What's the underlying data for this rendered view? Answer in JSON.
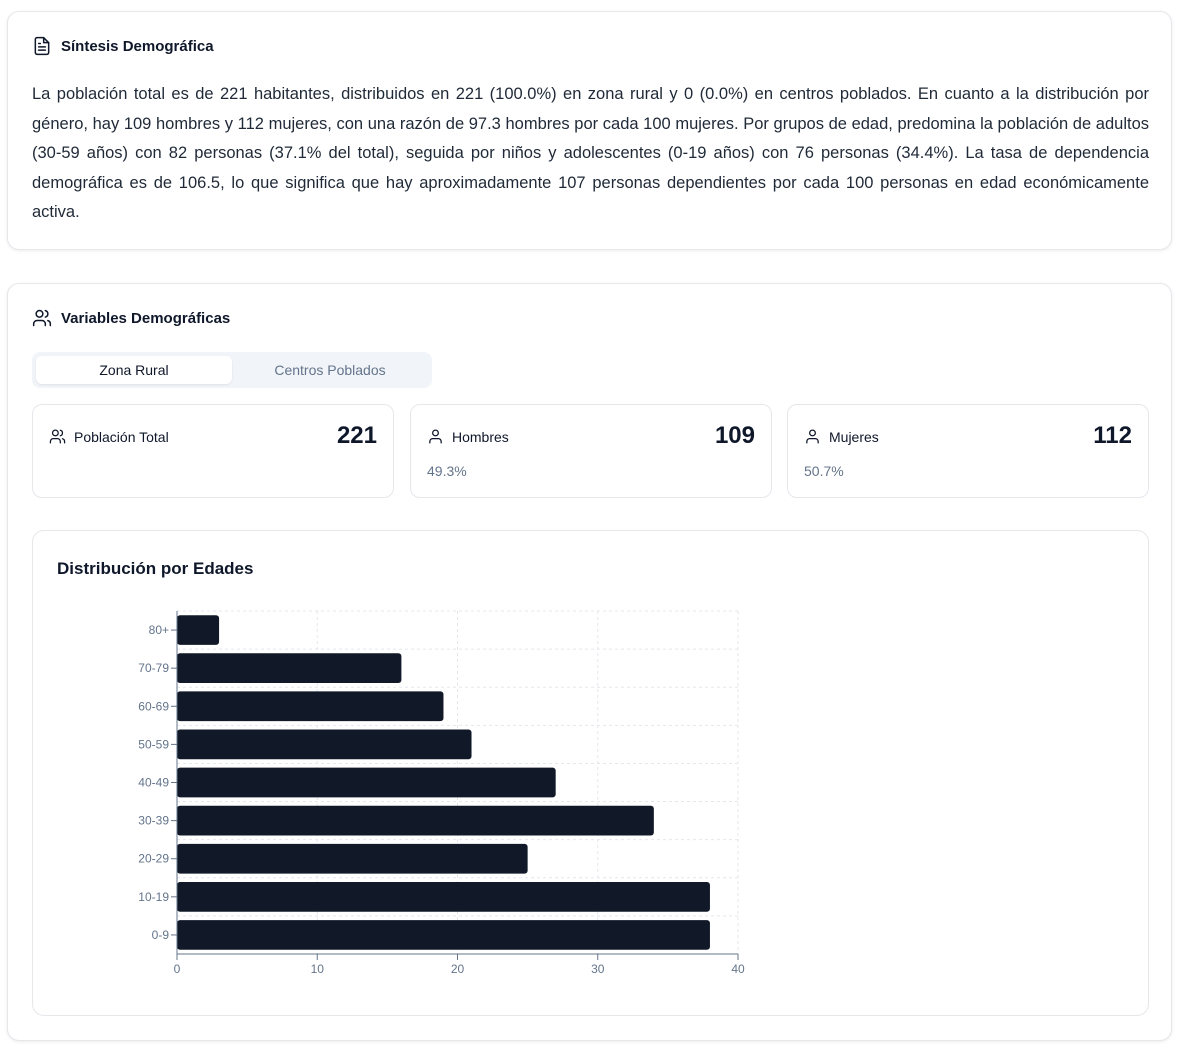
{
  "summary": {
    "title": "Síntesis Demográfica",
    "icon": "document-icon",
    "text": "La población total es de 221 habitantes, distribuidos en 221 (100.0%) en zona rural y 0 (0.0%) en centros poblados. En cuanto a la distribución por género, hay 109 hombres y 112 mujeres, con una razón de 97.3 hombres por cada 100 mujeres. Por grupos de edad, predomina la población de adultos (30-59 años) con 82 personas (37.1% del total), seguida por niños y adolescentes (0-19 años) con 76 personas (34.4%). La tasa de dependencia demográfica es de 106.5, lo que significa que hay aproximadamente 107 personas dependientes por cada 100 personas en edad económicamente activa."
  },
  "variables": {
    "title": "Variables Demográficas",
    "icon": "users-icon",
    "tabs": [
      {
        "label": "Zona Rural",
        "active": true
      },
      {
        "label": "Centros Poblados",
        "active": false
      }
    ],
    "stats": [
      {
        "label": "Población Total",
        "value": "221",
        "pct": "",
        "icon": "users-icon"
      },
      {
        "label": "Hombres",
        "value": "109",
        "pct": "49.3%",
        "icon": "user-icon"
      },
      {
        "label": "Mujeres",
        "value": "112",
        "pct": "50.7%",
        "icon": "user-icon"
      }
    ]
  },
  "chart": {
    "title": "Distribución por Edades"
  },
  "chart_data": {
    "type": "bar",
    "orientation": "horizontal",
    "categories": [
      "80+",
      "70-79",
      "60-69",
      "50-59",
      "40-49",
      "30-39",
      "20-29",
      "10-19",
      "0-9"
    ],
    "values": [
      3,
      16,
      19,
      21,
      27,
      34,
      25,
      38,
      38
    ],
    "xlim": [
      0,
      40
    ],
    "xticks": [
      0,
      10,
      20,
      30,
      40
    ],
    "grid": true,
    "bar_color": "#111827"
  }
}
